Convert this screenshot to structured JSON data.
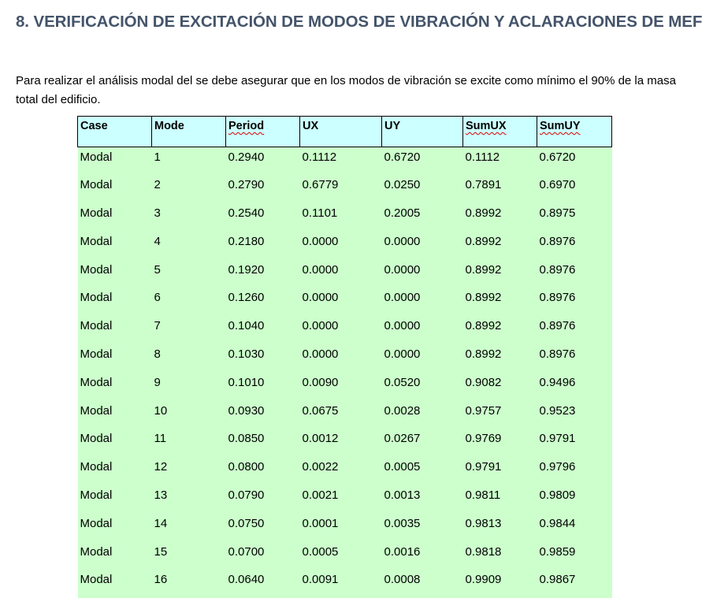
{
  "title": "8.  VERIFICACIÓN DE EXCITACIÓN DE MODOS DE VIBRACIÓN Y ACLARACIONES DE MEF",
  "paragraph": "Para realizar el análisis modal del se debe asegurar que en los modos de vibración se excite como mínimo el 90% de la masa total del edificio.",
  "table": {
    "headers": [
      "Case",
      "Mode",
      "Period",
      "UX",
      "UY",
      "SumUX",
      "SumUY"
    ],
    "rows": [
      [
        "Modal",
        "1",
        "0.2940",
        "0.1112",
        "0.6720",
        "0.1112",
        "0.6720"
      ],
      [
        "Modal",
        "2",
        "0.2790",
        "0.6779",
        "0.0250",
        "0.7891",
        "0.6970"
      ],
      [
        "Modal",
        "3",
        "0.2540",
        "0.1101",
        "0.2005",
        "0.8992",
        "0.8975"
      ],
      [
        "Modal",
        "4",
        "0.2180",
        "0.0000",
        "0.0000",
        "0.8992",
        "0.8976"
      ],
      [
        "Modal",
        "5",
        "0.1920",
        "0.0000",
        "0.0000",
        "0.8992",
        "0.8976"
      ],
      [
        "Modal",
        "6",
        "0.1260",
        "0.0000",
        "0.0000",
        "0.8992",
        "0.8976"
      ],
      [
        "Modal",
        "7",
        "0.1040",
        "0.0000",
        "0.0000",
        "0.8992",
        "0.8976"
      ],
      [
        "Modal",
        "8",
        "0.1030",
        "0.0000",
        "0.0000",
        "0.8992",
        "0.8976"
      ],
      [
        "Modal",
        "9",
        "0.1010",
        "0.0090",
        "0.0520",
        "0.9082",
        "0.9496"
      ],
      [
        "Modal",
        "10",
        "0.0930",
        "0.0675",
        "0.0028",
        "0.9757",
        "0.9523"
      ],
      [
        "Modal",
        "11",
        "0.0850",
        "0.0012",
        "0.0267",
        "0.9769",
        "0.9791"
      ],
      [
        "Modal",
        "12",
        "0.0800",
        "0.0022",
        "0.0005",
        "0.9791",
        "0.9796"
      ],
      [
        "Modal",
        "13",
        "0.0790",
        "0.0021",
        "0.0013",
        "0.9811",
        "0.9809"
      ],
      [
        "Modal",
        "14",
        "0.0750",
        "0.0001",
        "0.0035",
        "0.9813",
        "0.9844"
      ],
      [
        "Modal",
        "15",
        "0.0700",
        "0.0005",
        "0.0016",
        "0.9818",
        "0.9859"
      ],
      [
        "Modal",
        "16",
        "0.0640",
        "0.0091",
        "0.0008",
        "0.9909",
        "0.9867"
      ]
    ]
  }
}
